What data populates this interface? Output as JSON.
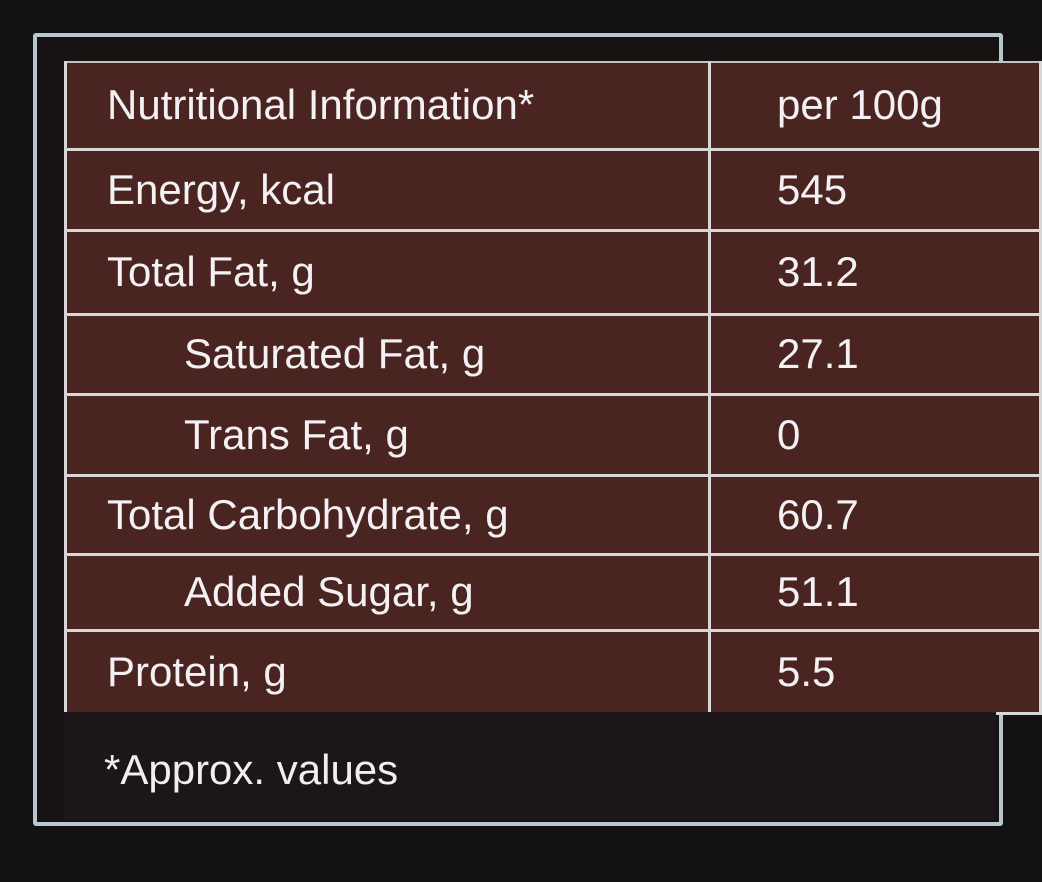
{
  "table": {
    "header": {
      "label": "Nutritional Information*",
      "value": "per 100g"
    },
    "rows": [
      {
        "label": "Energy, kcal",
        "value": "545"
      },
      {
        "label": "Total Fat, g",
        "value": "31.2"
      },
      {
        "label": "Saturated Fat, g",
        "value": "27.1"
      },
      {
        "label": "Trans Fat, g",
        "value": "0"
      },
      {
        "label": "Total Carbohydrate, g",
        "value": "60.7"
      },
      {
        "label": "Added Sugar, g",
        "value": "51.1"
      },
      {
        "label": "Protein, g",
        "value": "5.5"
      }
    ]
  },
  "footnote": "*Approx. values",
  "colors": {
    "table_background": "#4a2421",
    "outer_background": "#141112",
    "border": "#b8c6cf",
    "grid_lines": "#d8d7d8",
    "text": "#f3f1f3"
  }
}
